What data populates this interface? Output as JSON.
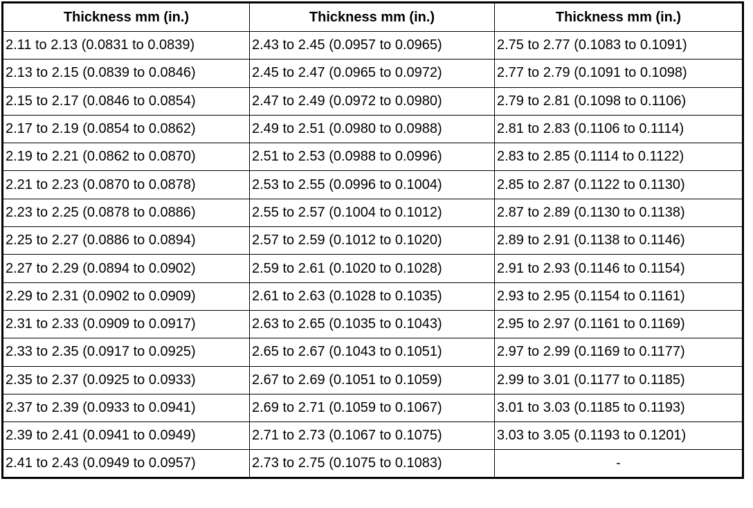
{
  "table": {
    "header": [
      "Thickness mm (in.)",
      "Thickness mm (in.)",
      "Thickness mm (in.)"
    ],
    "rows": [
      [
        "2.11 to 2.13 (0.0831 to 0.0839)",
        "2.43 to 2.45 (0.0957 to 0.0965)",
        "2.75 to 2.77 (0.1083 to 0.1091)"
      ],
      [
        "2.13 to 2.15 (0.0839 to 0.0846)",
        "2.45 to 2.47 (0.0965 to 0.0972)",
        "2.77 to 2.79 (0.1091 to 0.1098)"
      ],
      [
        "2.15 to 2.17 (0.0846 to 0.0854)",
        "2.47 to 2.49 (0.0972 to 0.0980)",
        "2.79 to 2.81 (0.1098 to 0.1106)"
      ],
      [
        "2.17 to 2.19 (0.0854 to 0.0862)",
        "2.49 to 2.51 (0.0980 to 0.0988)",
        "2.81 to 2.83 (0.1106 to 0.1114)"
      ],
      [
        "2.19 to 2.21 (0.0862 to 0.0870)",
        "2.51 to 2.53 (0.0988 to 0.0996)",
        "2.83 to 2.85 (0.1114 to 0.1122)"
      ],
      [
        "2.21 to 2.23 (0.0870 to 0.0878)",
        "2.53 to 2.55 (0.0996 to 0.1004)",
        "2.85 to 2.87 (0.1122 to 0.1130)"
      ],
      [
        "2.23 to 2.25 (0.0878 to 0.0886)",
        "2.55 to 2.57 (0.1004 to 0.1012)",
        "2.87 to 2.89 (0.1130 to 0.1138)"
      ],
      [
        "2.25 to 2.27 (0.0886 to 0.0894)",
        "2.57 to 2.59 (0.1012 to 0.1020)",
        "2.89 to 2.91 (0.1138 to 0.1146)"
      ],
      [
        "2.27 to 2.29 (0.0894 to 0.0902)",
        "2.59 to 2.61 (0.1020 to 0.1028)",
        "2.91 to 2.93 (0.1146 to 0.1154)"
      ],
      [
        "2.29 to 2.31 (0.0902 to 0.0909)",
        "2.61 to 2.63 (0.1028 to 0.1035)",
        "2.93 to 2.95 (0.1154 to 0.1161)"
      ],
      [
        "2.31 to 2.33 (0.0909 to 0.0917)",
        "2.63 to 2.65 (0.1035 to 0.1043)",
        "2.95 to 2.97 (0.1161 to 0.1169)"
      ],
      [
        "2.33 to 2.35 (0.0917 to 0.0925)",
        "2.65 to 2.67 (0.1043 to 0.1051)",
        "2.97 to 2.99 (0.1169 to 0.1177)"
      ],
      [
        "2.35 to 2.37 (0.0925 to 0.0933)",
        "2.67 to 2.69 (0.1051 to 0.1059)",
        "2.99 to 3.01 (0.1177 to 0.1185)"
      ],
      [
        "2.37 to 2.39 (0.0933 to 0.0941)",
        "2.69 to 2.71 (0.1059 to 0.1067)",
        "3.01 to 3.03 (0.1185 to 0.1193)"
      ],
      [
        "2.39 to 2.41 (0.0941 to 0.0949)",
        "2.71 to 2.73 (0.1067 to 0.1075)",
        "3.03 to 3.05 (0.1193 to 0.1201)"
      ],
      [
        "2.41 to 2.43 (0.0949 to 0.0957)",
        "2.73 to 2.75 (0.1075 to 0.1083)",
        "-"
      ]
    ]
  }
}
